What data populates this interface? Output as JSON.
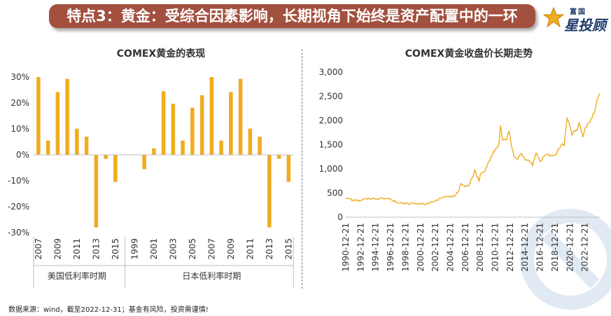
{
  "header": {
    "title": "特点3：黄金：受综合因素影响，长期视角下始终是资产配置中的一环",
    "logo_top": "富国",
    "logo_main": "星投顾",
    "bg_color": "#a3503f"
  },
  "footer": {
    "text": "数据来源：wind，截至2022-12-31；基金有风险，投资需谨慎!"
  },
  "chart_data": [
    {
      "type": "bar",
      "title": "COMEX黄金的表现",
      "color": "#f0ab1f",
      "y_unit": "%",
      "ylim": [
        -30,
        30
      ],
      "yticks": [
        30,
        20,
        10,
        0,
        -10,
        -20,
        -30
      ],
      "ytick_labels": [
        "30%",
        "20%",
        "10%",
        "0%",
        "-10%",
        "-20%",
        "-30%"
      ],
      "groups": [
        {
          "name": "美国低利率时期",
          "categories": [
            "2007",
            "2008",
            "2009",
            "2010",
            "2011",
            "2012",
            "2013",
            "2014",
            "2015"
          ],
          "tick_labels": [
            "2007",
            "",
            "2009",
            "",
            "2011",
            "",
            "2013",
            "",
            "2015"
          ],
          "values": [
            30.0,
            5.5,
            24.2,
            29.3,
            10.1,
            7.0,
            -28.0,
            -1.5,
            -10.4
          ]
        },
        {
          "name": "日本低利率时期",
          "categories": [
            "1999",
            "2000",
            "2001",
            "2002",
            "2003",
            "2004",
            "2005",
            "2006",
            "2007",
            "2008",
            "2009",
            "2010",
            "2011",
            "2012",
            "2013",
            "2014",
            "2015"
          ],
          "tick_labels": [
            "1999",
            "",
            "2001",
            "",
            "2003",
            "",
            "2005",
            "",
            "2007",
            "",
            "2009",
            "",
            "2011",
            "",
            "2013",
            "",
            "2015"
          ],
          "values": [
            0.0,
            -5.5,
            2.5,
            24.5,
            19.7,
            5.5,
            18.2,
            23.0,
            30.0,
            5.5,
            24.2,
            29.3,
            10.1,
            7.0,
            -28.0,
            -1.5,
            -10.4
          ]
        }
      ]
    },
    {
      "type": "line",
      "title": "COMEX黄金收盘价长期走势",
      "color": "#f0ab1f",
      "ylim": [
        0,
        3000
      ],
      "yticks": [
        0,
        500,
        1000,
        1500,
        2000,
        2500,
        3000
      ],
      "ytick_labels": [
        "0",
        "500",
        "1,000",
        "1,500",
        "2,000",
        "2,500",
        "3,000"
      ],
      "xticks": [
        "1990-12-21",
        "1992-12-21",
        "1994-12-21",
        "1996-12-21",
        "1998-12-21",
        "2000-12-21",
        "2002-12-21",
        "2004-12-21",
        "2006-12-21",
        "2008-12-21",
        "2010-12-21",
        "2012-12-21",
        "2014-12-21",
        "2016-12-21",
        "2018-12-21",
        "2020-12-21",
        "2022-12-21"
      ],
      "x": [
        "1990-12-21",
        "1991-12-21",
        "1992-12-21",
        "1993-06-21",
        "1993-12-21",
        "1994-12-21",
        "1995-12-21",
        "1996-06-21",
        "1996-12-21",
        "1997-12-21",
        "1998-12-21",
        "1999-06-21",
        "1999-10-21",
        "2000-12-21",
        "2001-06-21",
        "2001-12-21",
        "2002-12-21",
        "2003-12-21",
        "2004-12-21",
        "2005-06-21",
        "2005-12-21",
        "2006-05-21",
        "2006-12-21",
        "2007-06-21",
        "2007-12-21",
        "2008-03-21",
        "2008-10-21",
        "2008-12-21",
        "2009-06-21",
        "2009-12-21",
        "2010-06-21",
        "2010-12-21",
        "2011-06-21",
        "2011-09-06",
        "2011-12-21",
        "2012-06-21",
        "2012-10-21",
        "2012-12-21",
        "2013-06-21",
        "2013-12-21",
        "2014-06-21",
        "2014-12-21",
        "2015-06-21",
        "2015-12-21",
        "2016-06-21",
        "2016-12-21",
        "2017-06-21",
        "2017-12-21",
        "2018-06-21",
        "2018-12-21",
        "2019-06-21",
        "2019-12-21",
        "2020-03-21",
        "2020-08-06",
        "2020-12-21",
        "2021-03-21",
        "2021-06-21",
        "2021-12-21",
        "2022-03-21",
        "2022-06-21",
        "2022-09-21",
        "2022-12-21",
        "2023-06-21",
        "2024-03-21",
        "2024-06-21",
        "2024-10-21",
        "2024-12-21"
      ],
      "y": [
        385,
        355,
        340,
        380,
        385,
        380,
        388,
        390,
        370,
        295,
        288,
        262,
        300,
        272,
        270,
        280,
        345,
        410,
        440,
        430,
        510,
        700,
        630,
        660,
        830,
        980,
        740,
        880,
        930,
        1100,
        1250,
        1400,
        1500,
        1890,
        1600,
        1600,
        1780,
        1670,
        1250,
        1200,
        1320,
        1190,
        1180,
        1060,
        1330,
        1150,
        1260,
        1300,
        1270,
        1280,
        1420,
        1520,
        1480,
        2060,
        1880,
        1700,
        1780,
        1800,
        1960,
        1820,
        1660,
        1820,
        1950,
        2150,
        2340,
        2500,
        2560
      ]
    }
  ]
}
